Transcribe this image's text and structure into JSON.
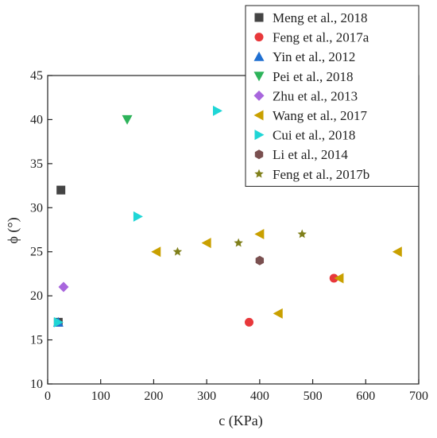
{
  "chart_data": {
    "type": "scatter",
    "xlabel": "c (KPa)",
    "ylabel": "ϕ (°)",
    "xlim": [
      0,
      700
    ],
    "ylim": [
      10,
      45
    ],
    "xticks": [
      0,
      100,
      200,
      300,
      400,
      500,
      600,
      700
    ],
    "yticks": [
      10,
      15,
      20,
      25,
      30,
      35,
      40,
      45
    ],
    "grid": false,
    "legend_position": "top-right",
    "series": [
      {
        "name": "Meng et al., 2018",
        "marker": "square",
        "color": "#444444",
        "points": [
          [
            25,
            32
          ],
          [
            20,
            17
          ]
        ]
      },
      {
        "name": "Feng et al., 2017a",
        "marker": "circle",
        "color": "#e8383b",
        "points": [
          [
            380,
            17
          ],
          [
            540,
            22
          ]
        ]
      },
      {
        "name": "Yin et al., 2012",
        "marker": "triangle-up",
        "color": "#1f6fd1",
        "points": [
          [
            20,
            17
          ]
        ]
      },
      {
        "name": "Pei et al., 2018",
        "marker": "triangle-down",
        "color": "#2db35a",
        "points": [
          [
            150,
            40
          ]
        ]
      },
      {
        "name": "Zhu et al., 2013",
        "marker": "diamond",
        "color": "#a866dd",
        "points": [
          [
            30,
            21
          ]
        ]
      },
      {
        "name": "Wang et al., 2017",
        "marker": "triangle-left",
        "color": "#c9a000",
        "points": [
          [
            205,
            25
          ],
          [
            300,
            26
          ],
          [
            400,
            27
          ],
          [
            435,
            18
          ],
          [
            550,
            22
          ],
          [
            660,
            25
          ]
        ]
      },
      {
        "name": "Cui et al., 2018",
        "marker": "triangle-right",
        "color": "#1fd6d6",
        "points": [
          [
            320,
            41
          ],
          [
            170,
            29
          ],
          [
            20,
            17
          ]
        ]
      },
      {
        "name": "Li et al., 2014",
        "marker": "hexagon",
        "color": "#7a5050",
        "points": [
          [
            400,
            24
          ]
        ]
      },
      {
        "name": "Feng et al., 2017b",
        "marker": "star",
        "color": "#7f7f1a",
        "points": [
          [
            245,
            25
          ],
          [
            360,
            26
          ],
          [
            480,
            27
          ]
        ]
      }
    ]
  }
}
